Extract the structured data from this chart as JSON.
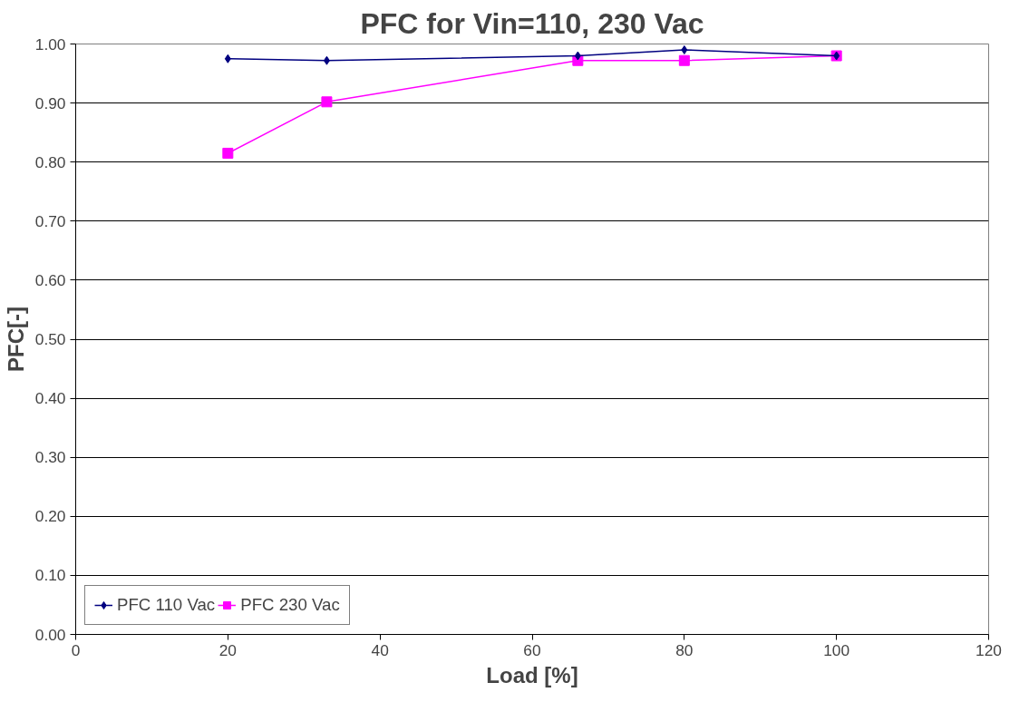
{
  "chart_data": {
    "type": "line",
    "title": "PFC for Vin=110, 230 Vac",
    "xlabel": "Load [%]",
    "ylabel": "PFC[-]",
    "x": [
      20,
      33,
      66,
      80,
      100
    ],
    "series": [
      {
        "name": "PFC 110 Vac",
        "color": "#000080",
        "marker": "diamond",
        "values": [
          0.975,
          0.972,
          0.98,
          0.99,
          0.98
        ]
      },
      {
        "name": "PFC 230 Vac",
        "color": "#ff00ff",
        "marker": "square",
        "values": [
          0.815,
          0.902,
          0.972,
          0.972,
          0.98
        ]
      }
    ],
    "xlim": [
      0,
      120
    ],
    "xticks": [
      0,
      20,
      40,
      60,
      80,
      100,
      120
    ],
    "ylim": [
      0,
      1
    ],
    "yticks": [
      {
        "value": 0,
        "label": "0.00"
      },
      {
        "value": 0.1,
        "label": "0.10"
      },
      {
        "value": 0.2,
        "label": "0.20"
      },
      {
        "value": 0.3,
        "label": "0.30"
      },
      {
        "value": 0.4,
        "label": "0.40"
      },
      {
        "value": 0.5,
        "label": "0.50"
      },
      {
        "value": 0.6,
        "label": "0.60"
      },
      {
        "value": 0.7,
        "label": "0.70"
      },
      {
        "value": 0.8,
        "label": "0.80"
      },
      {
        "value": 0.9,
        "label": "0.90"
      },
      {
        "value": 1,
        "label": "1.00"
      }
    ],
    "grid": "y",
    "legend": "bottom left",
    "line_style": "solid"
  }
}
